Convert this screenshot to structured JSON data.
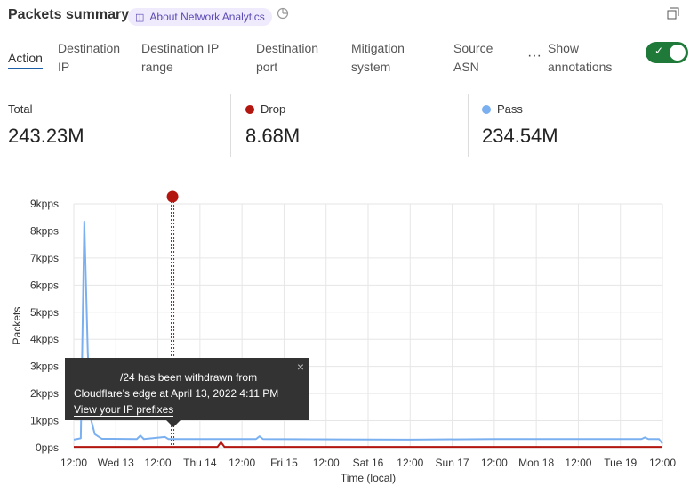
{
  "header": {
    "title": "Packets summary",
    "about_label": "About Network Analytics",
    "about_icon": "book-icon",
    "history_icon": "clock-icon",
    "expand_icon": "expand-window-icon"
  },
  "tabs": [
    {
      "label": "Action",
      "active": true
    },
    {
      "label": "Destination\nIP"
    },
    {
      "label": "Destination IP\nrange"
    },
    {
      "label": "Destination\nport"
    },
    {
      "label": "Mitigation\nsystem"
    },
    {
      "label": "Source\nASN"
    }
  ],
  "more_icon": "ellipsis-icon",
  "annotations_toggle": {
    "label": "Show\nannotations",
    "on": true
  },
  "stats": [
    {
      "label": "Total",
      "value": "243.23M"
    },
    {
      "label": "Drop",
      "value": "8.68M",
      "color": "#b3150f"
    },
    {
      "label": "Pass",
      "value": "234.54M",
      "color": "#7bb0f0"
    }
  ],
  "tooltip": {
    "line1": "/24 has been withdrawn from",
    "line2": "Cloudflare's edge at April 13, 2022 4:11 PM",
    "link": "View your IP prefixes",
    "close_icon": "close-icon"
  },
  "chart_data": {
    "type": "line",
    "xlabel": "Time (local)",
    "ylabel": "Packets",
    "ylim": [
      0,
      9
    ],
    "y_ticks": [
      "0pps",
      "1kpps",
      "2kpps",
      "3kpps",
      "4kpps",
      "5kpps",
      "6kpps",
      "7kpps",
      "8kpps",
      "9kpps"
    ],
    "x_range": [
      "2022-04-12T12:00",
      "2022-04-19T12:00"
    ],
    "x_ticks": [
      "12:00",
      "Wed 13",
      "12:00",
      "Thu 14",
      "12:00",
      "Fri 15",
      "12:00",
      "Sat 16",
      "12:00",
      "Sun 17",
      "12:00",
      "Mon 18",
      "12:00",
      "Tue 19",
      "12:00"
    ],
    "grid": true,
    "annotation": {
      "time": "2022-04-13T16:11",
      "color": "#b3150f"
    },
    "series": [
      {
        "name": "Pass",
        "color": "#7bb0f0",
        "points": [
          [
            "2022-04-12T12:00",
            0.3
          ],
          [
            "2022-04-12T14:00",
            0.35
          ],
          [
            "2022-04-12T15:00",
            8.35
          ],
          [
            "2022-04-12T16:00",
            3.5
          ],
          [
            "2022-04-12T17:00",
            1.0
          ],
          [
            "2022-04-12T18:00",
            0.5
          ],
          [
            "2022-04-12T20:00",
            0.33
          ],
          [
            "2022-04-13T06:00",
            0.32
          ],
          [
            "2022-04-13T07:00",
            0.45
          ],
          [
            "2022-04-13T08:00",
            0.32
          ],
          [
            "2022-04-13T14:00",
            0.4
          ],
          [
            "2022-04-13T15:00",
            0.32
          ],
          [
            "2022-04-14T16:00",
            0.32
          ],
          [
            "2022-04-14T17:00",
            0.42
          ],
          [
            "2022-04-14T18:00",
            0.32
          ],
          [
            "2022-04-16T12:00",
            0.3
          ],
          [
            "2022-04-17T12:00",
            0.32
          ],
          [
            "2022-04-19T06:00",
            0.32
          ],
          [
            "2022-04-19T07:00",
            0.38
          ],
          [
            "2022-04-19T08:00",
            0.32
          ],
          [
            "2022-04-19T11:00",
            0.32
          ],
          [
            "2022-04-19T12:00",
            0.15
          ]
        ]
      },
      {
        "name": "Drop",
        "color": "#b3150f",
        "points": [
          [
            "2022-04-12T12:00",
            0.03
          ],
          [
            "2022-04-14T05:00",
            0.03
          ],
          [
            "2022-04-14T06:00",
            0.2
          ],
          [
            "2022-04-14T07:00",
            0.03
          ],
          [
            "2022-04-19T12:00",
            0.03
          ]
        ]
      }
    ]
  }
}
